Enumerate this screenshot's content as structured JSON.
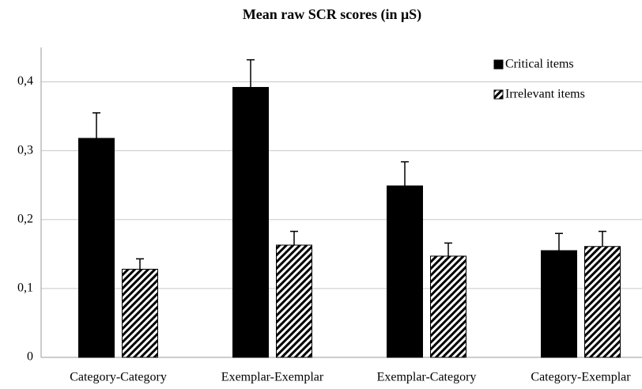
{
  "chart_data": {
    "type": "bar",
    "title": "Mean raw SCR scores (in μS)",
    "categories": [
      "Category-Category",
      "Exemplar-Exemplar",
      "Exemplar-Category",
      "Category-Exemplar"
    ],
    "series": [
      {
        "name": "Critical items",
        "color": "#000000",
        "pattern": "solid",
        "values": [
          0.318,
          0.392,
          0.249,
          0.155
        ],
        "errors": [
          0.037,
          0.04,
          0.035,
          0.025
        ]
      },
      {
        "name": "Irrelevant items",
        "color": "#000000",
        "pattern": "diagonal-stripes",
        "values": [
          0.128,
          0.163,
          0.147,
          0.161
        ],
        "errors": [
          0.015,
          0.02,
          0.019,
          0.022
        ]
      }
    ],
    "ylim": [
      0,
      0.45
    ],
    "yticks": [
      0,
      {
        "value": 0.1,
        "label": "0,1"
      },
      {
        "value": 0.2,
        "label": "0,2"
      },
      {
        "value": 0.3,
        "label": "0,3"
      },
      {
        "value": 0.4,
        "label": "0,4"
      }
    ],
    "grid": true,
    "legend": "top-right"
  }
}
